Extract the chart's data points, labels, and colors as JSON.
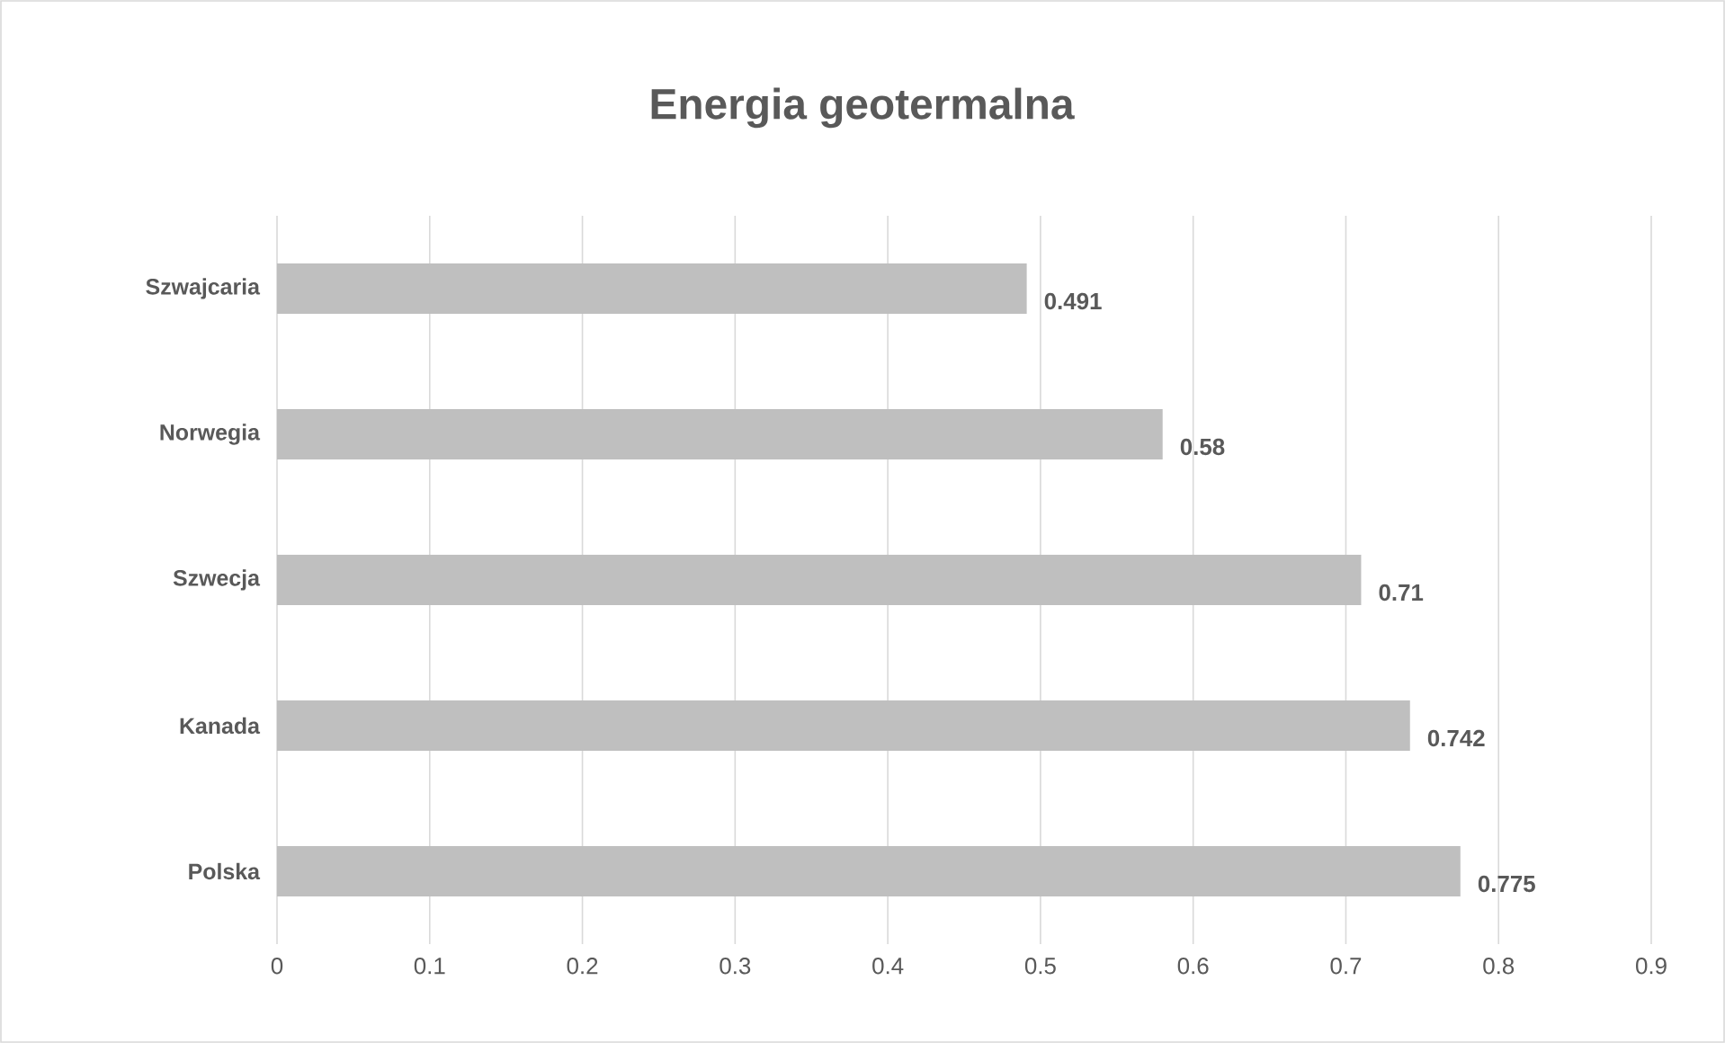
{
  "chart_data": {
    "type": "bar",
    "orientation": "horizontal",
    "title": "Energia geotermalna",
    "categories": [
      "Szwajcaria",
      "Norwegia",
      "Szwecja",
      "Kanada",
      "Polska"
    ],
    "values": [
      0.491,
      0.58,
      0.71,
      0.742,
      0.775
    ],
    "color": "#bfbfbf",
    "xlim": [
      0,
      0.9
    ],
    "xticks": [
      0,
      0.1,
      0.2,
      0.3,
      0.4,
      0.5,
      0.6,
      0.7,
      0.8,
      0.9
    ],
    "grid": "x",
    "data_labels": true
  }
}
